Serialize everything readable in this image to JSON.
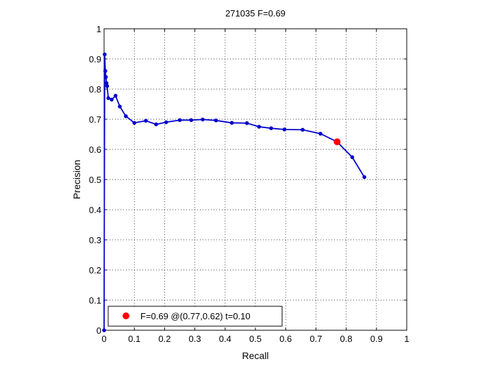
{
  "chart_data": {
    "type": "line",
    "title": "271035 F=0.69",
    "xlabel": "Recall",
    "ylabel": "Precision",
    "xlim": [
      0,
      1
    ],
    "ylim": [
      0,
      1
    ],
    "grid": true,
    "xticks": [
      "0",
      "0.1",
      "0.2",
      "0.3",
      "0.4",
      "0.5",
      "0.6",
      "0.7",
      "0.8",
      "0.9",
      "1"
    ],
    "yticks": [
      "0",
      "0.1",
      "0.2",
      "0.3",
      "0.4",
      "0.5",
      "0.6",
      "0.7",
      "0.8",
      "0.9",
      "1"
    ],
    "series": [
      {
        "color": "#0000cc",
        "x": [
          0.0,
          0.002,
          0.004,
          0.006,
          0.008,
          0.01,
          0.014,
          0.025,
          0.038,
          0.052,
          0.072,
          0.1,
          0.138,
          0.172,
          0.205,
          0.25,
          0.288,
          0.326,
          0.37,
          0.422,
          0.472,
          0.512,
          0.552,
          0.596,
          0.656,
          0.715,
          0.77,
          0.82,
          0.86
        ],
        "y": [
          0.0,
          0.915,
          0.86,
          0.84,
          0.82,
          0.81,
          0.77,
          0.765,
          0.778,
          0.742,
          0.71,
          0.688,
          0.695,
          0.683,
          0.69,
          0.697,
          0.697,
          0.699,
          0.696,
          0.688,
          0.687,
          0.675,
          0.67,
          0.666,
          0.665,
          0.652,
          0.625,
          0.574,
          0.508
        ]
      }
    ],
    "highlight": {
      "x": 0.77,
      "y": 0.625,
      "color": "#ff0000",
      "label": "F=0.69 @(0.77,0.62) t=0.10"
    },
    "legend_position": "bottom-left"
  }
}
